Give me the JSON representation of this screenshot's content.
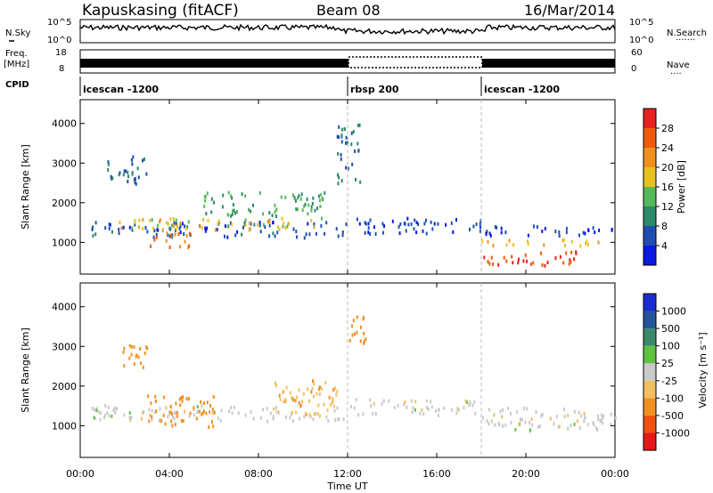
{
  "header": {
    "station": "Kapuskasing (fitACF)",
    "beam": "Beam 08",
    "date": "16/Mar/2014"
  },
  "panels": {
    "nsky": {
      "label": "N.Sky",
      "ticks": [
        "10^5",
        "10^0"
      ],
      "right_label": "N.Search",
      "right_ticks": [
        "10^5",
        "10^0"
      ]
    },
    "freq": {
      "label_line1": "Freq.",
      "label_line2": "[MHz]",
      "ticks": [
        "18",
        "8"
      ],
      "right_label": "Nave",
      "right_ticks": [
        "60",
        "0"
      ]
    },
    "cpid": {
      "label": "CPID",
      "segments": [
        {
          "name": "icescan -1200",
          "start_h": 0,
          "end_h": 12
        },
        {
          "name": "rbsp 200",
          "start_h": 12,
          "end_h": 18
        },
        {
          "name": "icescan -1200",
          "start_h": 18,
          "end_h": 24
        }
      ]
    }
  },
  "axes": {
    "ylabel": "Slant Range [km]",
    "yticks": [
      "1000",
      "2000",
      "3000",
      "4000"
    ],
    "xlabel": "Time UT",
    "xticks": [
      "00:00",
      "04:00",
      "08:00",
      "12:00",
      "16:00",
      "20:00",
      "00:00"
    ]
  },
  "power": {
    "label": "Power [dB]",
    "ticks": [
      "4",
      "8",
      "12",
      "16",
      "20",
      "24",
      "28"
    ],
    "colors": [
      "#0a18e0",
      "#1e4fb0",
      "#2b8a6a",
      "#55b85a",
      "#e8c020",
      "#f0901e",
      "#f05a10",
      "#e82020"
    ]
  },
  "velocity": {
    "label": "Velocity [m s⁻¹]",
    "ticks": [
      "1000",
      "500",
      "100",
      "25",
      "-25",
      "-100",
      "-500",
      "-1000"
    ],
    "colors": [
      "#1a2cd0",
      "#25559a",
      "#3a8a6a",
      "#60c040",
      "#c9c9c9",
      "#f0c060",
      "#f09020",
      "#f05010",
      "#e81818"
    ]
  },
  "chart_data": {
    "type": "heatmap",
    "title": "Kapuskasing (fitACF) Beam 08 16/Mar/2014",
    "xlabel": "Time UT",
    "ylabel": "Slant Range [km]",
    "xlim": [
      0,
      24
    ],
    "ylim": [
      200,
      4600
    ],
    "power_regions": [
      {
        "t0": 0.5,
        "t1": 12.0,
        "r0": 1150,
        "r1": 1550,
        "value": 6
      },
      {
        "t0": 1.5,
        "t1": 11.0,
        "r0": 1350,
        "r1": 1650,
        "value": 18
      },
      {
        "t0": 3.0,
        "t1": 5.0,
        "r0": 900,
        "r1": 1300,
        "value": 24
      },
      {
        "t0": 5.5,
        "t1": 11.0,
        "r0": 1700,
        "r1": 2300,
        "value": 12
      },
      {
        "t0": 1.0,
        "t1": 3.0,
        "r0": 2500,
        "r1": 3200,
        "value": 8
      },
      {
        "t0": 11.5,
        "t1": 12.6,
        "r0": 2500,
        "r1": 4000,
        "value": 8
      },
      {
        "t0": 12.0,
        "t1": 18.0,
        "r0": 1250,
        "r1": 1650,
        "value": 5
      },
      {
        "t0": 18.0,
        "t1": 24.0,
        "r0": 1200,
        "r1": 1450,
        "value": 4
      },
      {
        "t0": 18.0,
        "t1": 24.0,
        "r0": 950,
        "r1": 1100,
        "value": 20
      },
      {
        "t0": 18.0,
        "t1": 22.5,
        "r0": 450,
        "r1": 800,
        "value": 28
      }
    ],
    "velocity_regions": [
      {
        "t0": 0.5,
        "t1": 12.0,
        "r0": 1150,
        "r1": 1550,
        "value": 0
      },
      {
        "t0": 3.0,
        "t1": 6.0,
        "r0": 1000,
        "r1": 1800,
        "value": -300
      },
      {
        "t0": 8.5,
        "t1": 11.5,
        "r0": 1300,
        "r1": 2200,
        "value": -80
      },
      {
        "t0": 1.5,
        "t1": 3.0,
        "r0": 2500,
        "r1": 3100,
        "value": -200
      },
      {
        "t0": 12.0,
        "t1": 18.0,
        "r0": 1300,
        "r1": 1700,
        "value": 0
      },
      {
        "t0": 18.0,
        "t1": 24.0,
        "r0": 900,
        "r1": 1500,
        "value": 0
      },
      {
        "t0": 12.0,
        "t1": 12.8,
        "r0": 3100,
        "r1": 4000,
        "value": -400
      }
    ]
  }
}
